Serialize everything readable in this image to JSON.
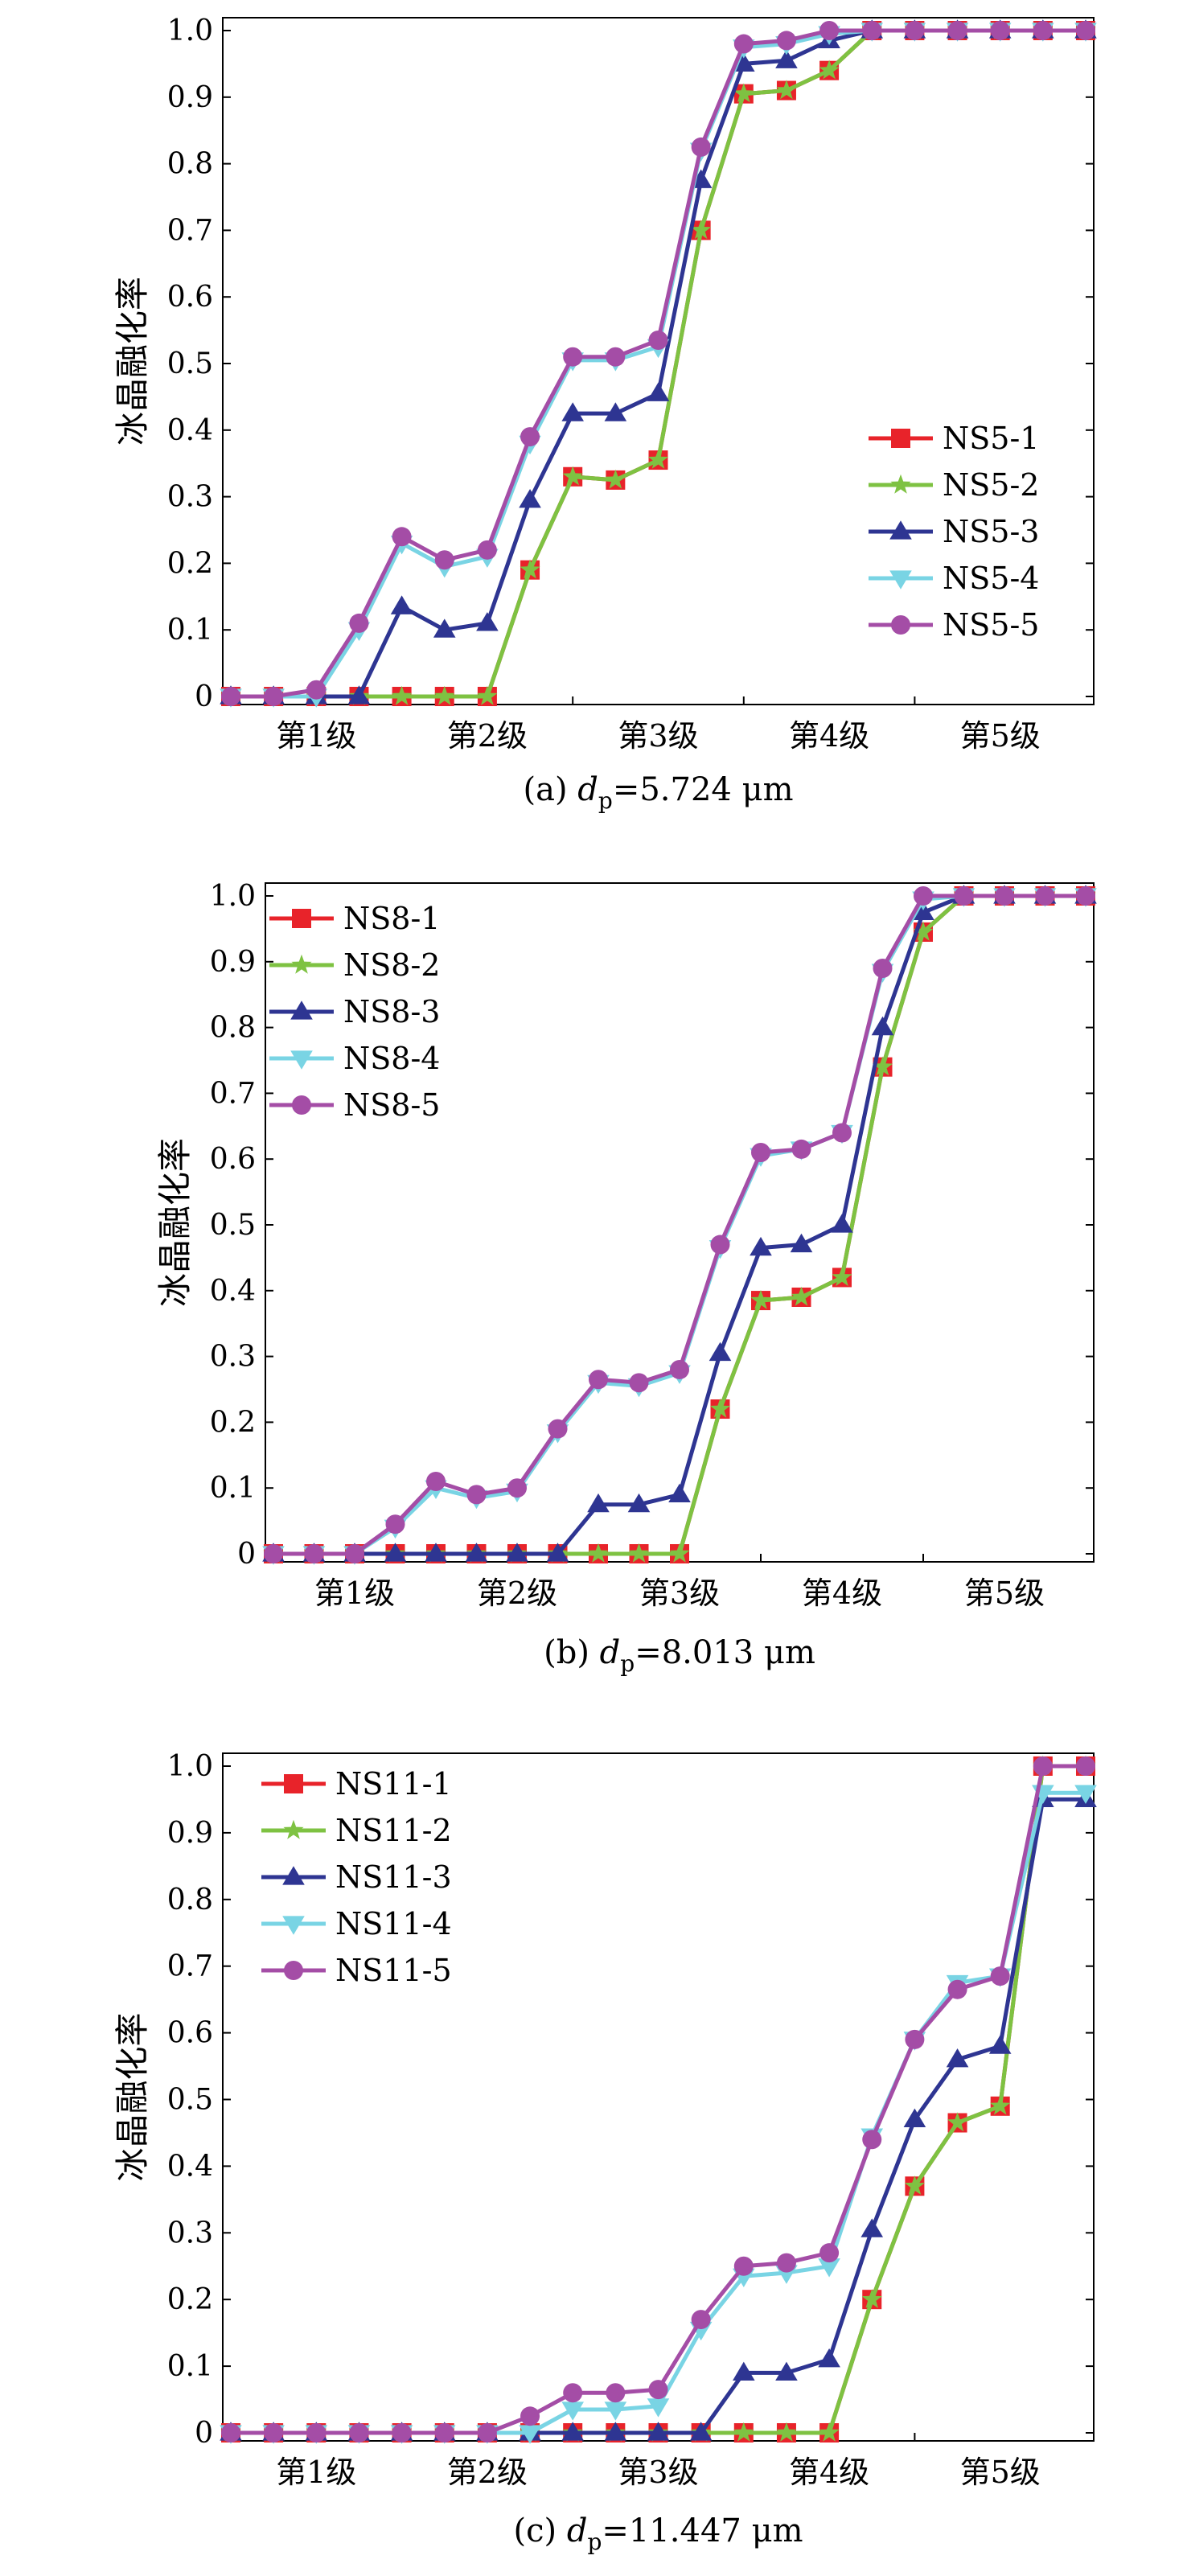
{
  "chart_data": [
    {
      "type": "line",
      "panel_label": "(a) ",
      "caption_var": "d",
      "caption_sub": "p",
      "caption_value": "=5.724 μm",
      "ylabel": "冰晶融化率",
      "ylim": [
        0,
        1.0
      ],
      "yticks": [
        "0",
        "0.1",
        "0.2",
        "0.3",
        "0.4",
        "0.5",
        "0.6",
        "0.7",
        "0.8",
        "0.9",
        "1.0"
      ],
      "categories": [
        "第1级",
        "第2级",
        "第3级",
        "第4级",
        "第5级"
      ],
      "x": [
        0,
        0.5,
        1,
        1.5,
        2,
        2.5,
        3,
        3.5,
        4,
        4.5,
        5,
        5.5,
        6,
        6.5,
        7,
        7.5,
        8,
        8.5,
        9,
        9.5,
        10
      ],
      "legend_position": "bottom-right",
      "series": [
        {
          "name": "NS5-1",
          "color": "#e8232a",
          "marker": "square",
          "values": [
            0,
            0,
            0,
            0,
            0,
            0,
            0,
            0.19,
            0.33,
            0.325,
            0.355,
            0.7,
            0.905,
            0.91,
            0.94,
            1.0,
            1.0,
            1.0,
            1.0,
            1.0,
            1.0
          ]
        },
        {
          "name": "NS5-2",
          "color": "#7ec242",
          "marker": "star",
          "values": [
            0,
            0,
            0,
            0,
            0,
            0,
            0,
            0.19,
            0.33,
            0.325,
            0.355,
            0.7,
            0.905,
            0.91,
            0.94,
            1.0,
            1.0,
            1.0,
            1.0,
            1.0,
            1.0
          ]
        },
        {
          "name": "NS5-3",
          "color": "#2e3592",
          "marker": "triangle-up",
          "values": [
            0,
            0,
            0,
            0.0,
            0.135,
            0.1,
            0.11,
            0.295,
            0.425,
            0.425,
            0.455,
            0.775,
            0.95,
            0.955,
            0.985,
            1.0,
            1.0,
            1.0,
            1.0,
            1.0,
            1.0
          ]
        },
        {
          "name": "NS5-4",
          "color": "#79d4e4",
          "marker": "triangle-down",
          "values": [
            0,
            0,
            0,
            0.1,
            0.23,
            0.195,
            0.21,
            0.38,
            0.505,
            0.505,
            0.525,
            0.82,
            0.975,
            0.98,
            0.995,
            1.0,
            1.0,
            1.0,
            1.0,
            1.0,
            1.0
          ]
        },
        {
          "name": "NS5-5",
          "color": "#a44da6",
          "marker": "circle",
          "values": [
            0,
            0,
            0.01,
            0.11,
            0.24,
            0.205,
            0.22,
            0.39,
            0.51,
            0.51,
            0.535,
            0.825,
            0.98,
            0.985,
            1.0,
            1.0,
            1.0,
            1.0,
            1.0,
            1.0,
            1.0
          ]
        }
      ]
    },
    {
      "type": "line",
      "panel_label": "(b) ",
      "caption_var": "d",
      "caption_sub": "p",
      "caption_value": "=8.013 μm",
      "ylabel": "冰晶融化率",
      "ylim": [
        0,
        1.0
      ],
      "yticks": [
        "0",
        "0.1",
        "0.2",
        "0.3",
        "0.4",
        "0.5",
        "0.6",
        "0.7",
        "0.8",
        "0.9",
        "1.0"
      ],
      "categories": [
        "第1级",
        "第2级",
        "第3级",
        "第4级",
        "第5级"
      ],
      "x": [
        0,
        0.5,
        1,
        1.5,
        2,
        2.5,
        3,
        3.5,
        4,
        4.5,
        5,
        5.5,
        6,
        6.5,
        7,
        7.5,
        8,
        8.5,
        9,
        9.5,
        10
      ],
      "legend_position": "top-left",
      "series": [
        {
          "name": "NS8-1",
          "color": "#e8232a",
          "marker": "square",
          "values": [
            0,
            0,
            0,
            0,
            0,
            0,
            0,
            0,
            0,
            0,
            0,
            0.22,
            0.385,
            0.39,
            0.42,
            0.74,
            0.945,
            1.0,
            1.0,
            1.0,
            1.0
          ]
        },
        {
          "name": "NS8-2",
          "color": "#7ec242",
          "marker": "star",
          "values": [
            0,
            0,
            0,
            0,
            0,
            0,
            0,
            0,
            0,
            0,
            0,
            0.22,
            0.385,
            0.39,
            0.42,
            0.74,
            0.945,
            1.0,
            1.0,
            1.0,
            1.0
          ]
        },
        {
          "name": "NS8-3",
          "color": "#2e3592",
          "marker": "triangle-up",
          "values": [
            0,
            0,
            0,
            0,
            0,
            0,
            0,
            0,
            0.075,
            0.075,
            0.09,
            0.305,
            0.465,
            0.47,
            0.5,
            0.8,
            0.975,
            1.0,
            1.0,
            1.0,
            1.0
          ]
        },
        {
          "name": "NS8-4",
          "color": "#79d4e4",
          "marker": "triangle-down",
          "values": [
            0,
            0,
            0,
            0.04,
            0.1,
            0.085,
            0.095,
            0.185,
            0.26,
            0.255,
            0.275,
            0.465,
            0.605,
            0.615,
            0.64,
            0.885,
            0.995,
            1.0,
            1.0,
            1.0,
            1.0
          ]
        },
        {
          "name": "NS8-5",
          "color": "#a44da6",
          "marker": "circle",
          "values": [
            0,
            0,
            0,
            0.045,
            0.11,
            0.09,
            0.1,
            0.19,
            0.265,
            0.26,
            0.28,
            0.47,
            0.61,
            0.615,
            0.64,
            0.89,
            1.0,
            1.0,
            1.0,
            1.0,
            1.0
          ]
        }
      ]
    },
    {
      "type": "line",
      "panel_label": "(c) ",
      "caption_var": "d",
      "caption_sub": "p",
      "caption_value": "=11.447 μm",
      "ylabel": "冰晶融化率",
      "ylim": [
        0,
        1.0
      ],
      "yticks": [
        "0",
        "0.1",
        "0.2",
        "0.3",
        "0.4",
        "0.5",
        "0.6",
        "0.7",
        "0.8",
        "0.9",
        "1.0"
      ],
      "categories": [
        "第1级",
        "第2级",
        "第3级",
        "第4级",
        "第5级"
      ],
      "x": [
        0,
        0.5,
        1,
        1.5,
        2,
        2.5,
        3,
        3.5,
        4,
        4.5,
        5,
        5.5,
        6,
        6.5,
        7,
        7.5,
        8,
        8.5,
        9,
        9.5,
        10
      ],
      "legend_position": "top-left",
      "series": [
        {
          "name": "NS11-1",
          "color": "#e8232a",
          "marker": "square",
          "values": [
            0,
            0,
            0,
            0,
            0,
            0,
            0,
            0,
            0,
            0,
            0,
            0,
            0,
            0,
            0,
            0.2,
            0.37,
            0.465,
            0.49,
            1.0,
            1.0
          ]
        },
        {
          "name": "NS11-2",
          "color": "#7ec242",
          "marker": "star",
          "values": [
            0,
            0,
            0,
            0,
            0,
            0,
            0,
            0,
            0,
            0,
            0,
            0,
            0,
            0,
            0,
            0.2,
            0.37,
            0.465,
            0.49,
            1.0,
            1.0
          ]
        },
        {
          "name": "NS11-3",
          "color": "#2e3592",
          "marker": "triangle-up",
          "values": [
            0,
            0,
            0,
            0,
            0,
            0,
            0,
            0,
            0,
            0,
            0,
            0,
            0.09,
            0.09,
            0.11,
            0.305,
            0.47,
            0.56,
            0.58,
            0.95,
            0.95
          ]
        },
        {
          "name": "NS11-4",
          "color": "#79d4e4",
          "marker": "triangle-down",
          "values": [
            0,
            0,
            0,
            0,
            0,
            0,
            0,
            0,
            0.035,
            0.035,
            0.04,
            0.155,
            0.235,
            0.24,
            0.25,
            0.445,
            0.59,
            0.675,
            0.685,
            0.96,
            0.96
          ]
        },
        {
          "name": "NS11-5",
          "color": "#a44da6",
          "marker": "circle",
          "values": [
            0,
            0,
            0,
            0,
            0,
            0,
            0,
            0.025,
            0.06,
            0.06,
            0.065,
            0.17,
            0.25,
            0.255,
            0.27,
            0.44,
            0.59,
            0.665,
            0.685,
            1.0,
            1.0
          ]
        }
      ]
    }
  ]
}
